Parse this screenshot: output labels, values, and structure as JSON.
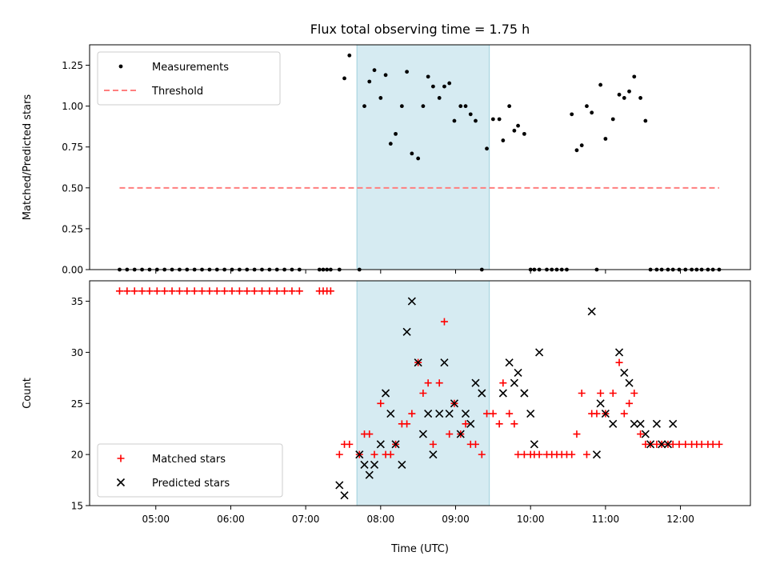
{
  "chart_data": [
    {
      "type": "scatter",
      "title": "Flux total observing time = 1.75 h",
      "ylabel": "Matched/Predicted stars",
      "xlabel": "",
      "xlim": [
        "04:07",
        "12:56"
      ],
      "ylim": [
        0,
        1.375
      ],
      "y_ticks": [
        "0.00",
        "0.25",
        "0.50",
        "0.75",
        "1.00",
        "1.25"
      ],
      "y_tick_values": [
        0,
        0.25,
        0.5,
        0.75,
        1.0,
        1.25
      ],
      "shaded_span": [
        "07:41",
        "09:27"
      ],
      "legend_position": "top-left",
      "series": [
        {
          "name": "Measurements",
          "kind": "points",
          "color": "#000000",
          "x": [
            "04:31",
            "04:37",
            "04:43",
            "04:49",
            "04:55",
            "05:01",
            "05:07",
            "05:13",
            "05:19",
            "05:25",
            "05:31",
            "05:37",
            "05:43",
            "05:49",
            "05:55",
            "06:01",
            "06:07",
            "06:13",
            "06:19",
            "06:25",
            "06:31",
            "06:37",
            "06:43",
            "06:49",
            "06:55",
            "07:11",
            "07:14",
            "07:17",
            "07:20",
            "07:27",
            "07:31",
            "07:35",
            "07:43",
            "07:47",
            "07:51",
            "07:55",
            "08:00",
            "08:04",
            "08:08",
            "08:12",
            "08:17",
            "08:21",
            "08:25",
            "08:30",
            "08:34",
            "08:38",
            "08:42",
            "08:47",
            "08:51",
            "08:55",
            "08:59",
            "09:04",
            "09:08",
            "09:12",
            "09:16",
            "09:21",
            "09:25",
            "09:30",
            "09:35",
            "09:38",
            "09:43",
            "09:47",
            "09:50",
            "09:55",
            "10:00",
            "10:03",
            "10:07",
            "10:13",
            "10:17",
            "10:21",
            "10:25",
            "10:29",
            "10:33",
            "10:37",
            "10:41",
            "10:45",
            "10:49",
            "10:53",
            "10:56",
            "11:00",
            "11:06",
            "11:11",
            "11:15",
            "11:19",
            "11:23",
            "11:28",
            "11:32",
            "11:36",
            "11:41",
            "11:45",
            "11:50",
            "11:54",
            "11:59",
            "12:04",
            "12:09",
            "12:13",
            "12:17",
            "12:22",
            "12:26",
            "12:31"
          ],
          "values": [
            0,
            0,
            0,
            0,
            0,
            0,
            0,
            0,
            0,
            0,
            0,
            0,
            0,
            0,
            0,
            0,
            0,
            0,
            0,
            0,
            0,
            0,
            0,
            0,
            0,
            0,
            0,
            0,
            0,
            0,
            1.17,
            1.31,
            0,
            1.0,
            1.15,
            1.22,
            1.05,
            1.19,
            0.77,
            0.83,
            1.0,
            1.21,
            0.71,
            0.68,
            1.0,
            1.18,
            1.12,
            1.05,
            1.12,
            1.14,
            0.91,
            1.0,
            1.0,
            0.95,
            0.91,
            0,
            0.74,
            0.92,
            0.92,
            0.79,
            1.0,
            0.85,
            0.88,
            0.83,
            0,
            0,
            0,
            0,
            0,
            0,
            0,
            0,
            0.95,
            0.73,
            0.76,
            1.0,
            0.96,
            0,
            1.13,
            0.8,
            0.92,
            1.07,
            1.05,
            1.09,
            1.18,
            1.05,
            0.91,
            0,
            0,
            0,
            0,
            0,
            0,
            0,
            0,
            0,
            0,
            0,
            0,
            0
          ]
        },
        {
          "name": "Threshold",
          "kind": "dashed-line",
          "color": "#ff7f7f",
          "x": [
            "04:31",
            "12:31"
          ],
          "values": [
            0.5,
            0.5
          ]
        }
      ]
    },
    {
      "type": "scatter",
      "title": "",
      "ylabel": "Count",
      "xlabel": "Time (UTC)",
      "xlim": [
        "04:07",
        "12:56"
      ],
      "ylim": [
        15,
        37
      ],
      "y_ticks": [
        "15",
        "20",
        "25",
        "30",
        "35"
      ],
      "y_tick_values": [
        15,
        20,
        25,
        30,
        35
      ],
      "x_ticks": [
        "05:00",
        "06:00",
        "07:00",
        "08:00",
        "09:00",
        "10:00",
        "11:00",
        "12:00"
      ],
      "x_tick_values": [
        "05:00",
        "06:00",
        "07:00",
        "08:00",
        "09:00",
        "10:00",
        "11:00",
        "12:00"
      ],
      "shaded_span": [
        "07:41",
        "09:27"
      ],
      "legend_position": "bottom-left",
      "series": [
        {
          "name": "Matched stars",
          "kind": "plus",
          "color": "#ff0000",
          "x": [
            "04:31",
            "04:37",
            "04:43",
            "04:49",
            "04:55",
            "05:01",
            "05:07",
            "05:13",
            "05:19",
            "05:25",
            "05:31",
            "05:37",
            "05:43",
            "05:49",
            "05:55",
            "06:01",
            "06:07",
            "06:13",
            "06:19",
            "06:25",
            "06:31",
            "06:37",
            "06:43",
            "06:49",
            "06:55",
            "07:11",
            "07:14",
            "07:17",
            "07:20",
            "07:27",
            "07:31",
            "07:35",
            "07:43",
            "07:47",
            "07:51",
            "07:55",
            "08:00",
            "08:04",
            "08:08",
            "08:12",
            "08:17",
            "08:21",
            "08:25",
            "08:30",
            "08:34",
            "08:38",
            "08:42",
            "08:47",
            "08:51",
            "08:55",
            "08:59",
            "09:04",
            "09:08",
            "09:12",
            "09:16",
            "09:21",
            "09:25",
            "09:30",
            "09:35",
            "09:38",
            "09:43",
            "09:47",
            "09:50",
            "09:55",
            "10:00",
            "10:03",
            "10:07",
            "10:13",
            "10:17",
            "10:21",
            "10:25",
            "10:29",
            "10:33",
            "10:37",
            "10:41",
            "10:45",
            "10:49",
            "10:53",
            "10:56",
            "11:00",
            "11:06",
            "11:11",
            "11:15",
            "11:19",
            "11:23",
            "11:28",
            "11:32",
            "11:36",
            "11:41",
            "11:45",
            "11:50",
            "11:54",
            "11:59",
            "12:04",
            "12:09",
            "12:13",
            "12:17",
            "12:22",
            "12:26",
            "12:31"
          ],
          "values": [
            36,
            36,
            36,
            36,
            36,
            36,
            36,
            36,
            36,
            36,
            36,
            36,
            36,
            36,
            36,
            36,
            36,
            36,
            36,
            36,
            36,
            36,
            36,
            36,
            36,
            36,
            36,
            36,
            36,
            20,
            21,
            21,
            20,
            22,
            22,
            20,
            25,
            20,
            20,
            21,
            23,
            23,
            24,
            29,
            26,
            27,
            21,
            27,
            33,
            22,
            25,
            22,
            23,
            21,
            21,
            20,
            24,
            24,
            23,
            27,
            24,
            23,
            20,
            20,
            20,
            20,
            20,
            20,
            20,
            20,
            20,
            20,
            20,
            22,
            26,
            20,
            24,
            24,
            26,
            24,
            26,
            29,
            24,
            25,
            26,
            22,
            21,
            21,
            21,
            21,
            21,
            21,
            21,
            21,
            21,
            21,
            21,
            21,
            21,
            21
          ]
        },
        {
          "name": "Predicted stars",
          "kind": "x",
          "color": "#000000",
          "x": [
            "07:27",
            "07:31",
            "07:43",
            "07:47",
            "07:51",
            "07:55",
            "08:00",
            "08:04",
            "08:08",
            "08:12",
            "08:17",
            "08:21",
            "08:25",
            "08:30",
            "08:34",
            "08:38",
            "08:42",
            "08:47",
            "08:51",
            "08:55",
            "08:59",
            "09:04",
            "09:08",
            "09:12",
            "09:16",
            "09:21",
            "09:38",
            "09:43",
            "09:47",
            "09:50",
            "09:55",
            "10:00",
            "10:03",
            "10:07",
            "10:49",
            "10:53",
            "10:56",
            "11:00",
            "11:06",
            "11:11",
            "11:15",
            "11:19",
            "11:23",
            "11:28",
            "11:32",
            "11:36",
            "11:41",
            "11:45",
            "11:50",
            "11:54"
          ],
          "values": [
            17,
            16,
            20,
            19,
            18,
            19,
            21,
            26,
            24,
            21,
            19,
            32,
            35,
            29,
            22,
            24,
            20,
            24,
            29,
            24,
            25,
            22,
            24,
            23,
            27,
            26,
            26,
            29,
            27,
            28,
            26,
            24,
            21,
            30,
            34,
            20,
            25,
            24,
            23,
            30,
            28,
            27,
            23,
            23,
            22,
            21,
            23,
            21,
            21,
            23
          ]
        }
      ]
    }
  ]
}
